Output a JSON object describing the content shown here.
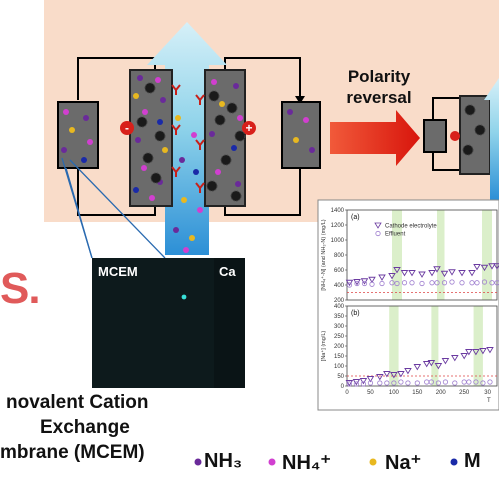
{
  "labels": {
    "polarity_line1": "Polarity",
    "polarity_line2": "reversal",
    "minus": "-",
    "plus": "+",
    "mcem_short": "MCEM",
    "ca_label": "Ca",
    "s_fragment": "S.",
    "membrane_line1": "novalent Cation",
    "membrane_line2": "Exchange",
    "membrane_line3": "mbrane (MCEM)"
  },
  "legend": [
    {
      "text": "NH₃",
      "color": "#6a2a9a"
    },
    {
      "text": "NH₄⁺",
      "color": "#d13fd0"
    },
    {
      "text": "Na⁺",
      "color": "#e8b820"
    },
    {
      "text": "M",
      "color": "#1a2aa8"
    }
  ],
  "colors": {
    "peach": "#f9dcc9",
    "electrode": "#6b6b6b",
    "electrode_border": "#2a2a2a",
    "arrow_blue": "#8fd3ea",
    "arrow_red": "#e8211a",
    "terminal_red": "#d8201a",
    "micrograph": "#0d1a1c",
    "s_red": "#e05a5a"
  },
  "chart_data": [
    {
      "type": "scatter",
      "panel": "(a)",
      "ylabel": "[NH₄⁺-N] (and NH₃-N) (mg/L)",
      "yticks": [
        "1400",
        "1200",
        "1000",
        "800",
        "600",
        "400",
        "200"
      ],
      "ylim": [
        200,
        1400
      ],
      "xlim": [
        0,
        300
      ],
      "series": [
        {
          "name": "Cathode electrolyte",
          "marker": "triangle-down",
          "x": [
            5,
            20,
            35,
            50,
            70,
            90,
            100,
            115,
            130,
            150,
            170,
            180,
            195,
            210,
            230,
            250,
            260,
            275,
            290,
            300
          ],
          "y": [
            430,
            440,
            450,
            470,
            500,
            520,
            600,
            560,
            560,
            540,
            560,
            610,
            550,
            570,
            560,
            560,
            640,
            630,
            650,
            650
          ]
        },
        {
          "name": "Effluent",
          "marker": "circle",
          "x": [
            5,
            20,
            35,
            50,
            70,
            90,
            100,
            115,
            130,
            150,
            170,
            180,
            195,
            210,
            230,
            250,
            260,
            275,
            290,
            300
          ],
          "y": [
            400,
            420,
            420,
            410,
            420,
            430,
            420,
            430,
            430,
            420,
            430,
            430,
            430,
            440,
            430,
            430,
            430,
            440,
            430,
            430
          ]
        }
      ],
      "legend_position": "top-left"
    },
    {
      "type": "scatter",
      "panel": "(b)",
      "ylabel": "[Na⁺] (mg/L)",
      "xlabel": "T",
      "yticks": [
        "400",
        "350",
        "300",
        "250",
        "200",
        "150",
        "100",
        "50",
        "0"
      ],
      "xticks": [
        "0",
        "50",
        "100",
        "150",
        "200",
        "250",
        "30"
      ],
      "ylim": [
        0,
        400
      ],
      "xlim": [
        0,
        320
      ],
      "series": [
        {
          "name": "Cathode electrolyte",
          "marker": "triangle-down",
          "x": [
            5,
            20,
            35,
            50,
            70,
            85,
            100,
            115,
            130,
            150,
            170,
            180,
            195,
            210,
            230,
            250,
            260,
            275,
            290,
            305
          ],
          "y": [
            15,
            20,
            25,
            35,
            45,
            60,
            55,
            60,
            75,
            95,
            110,
            115,
            100,
            125,
            140,
            150,
            170,
            170,
            175,
            180
          ]
        },
        {
          "name": "Effluent",
          "marker": "circle",
          "x": [
            5,
            20,
            35,
            50,
            70,
            85,
            100,
            115,
            130,
            150,
            170,
            180,
            195,
            210,
            230,
            250,
            260,
            275,
            290,
            305
          ],
          "y": [
            10,
            10,
            10,
            15,
            15,
            15,
            15,
            20,
            15,
            15,
            20,
            20,
            15,
            20,
            15,
            20,
            20,
            20,
            15,
            20
          ]
        }
      ],
      "reference_line": 50
    }
  ]
}
